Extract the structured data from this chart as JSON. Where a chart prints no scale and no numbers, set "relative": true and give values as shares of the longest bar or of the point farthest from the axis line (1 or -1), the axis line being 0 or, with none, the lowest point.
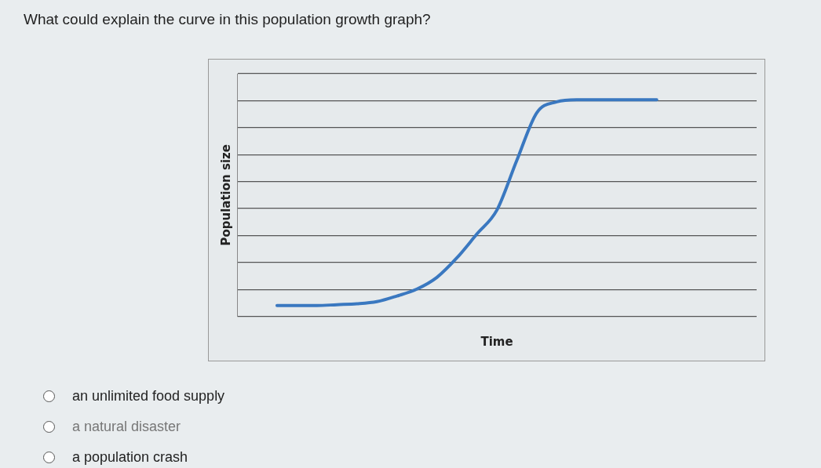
{
  "chart_data": {
    "type": "line",
    "title": "What could explain the curve in this population growth graph?",
    "xlabel": "Time",
    "ylabel": "Population size",
    "relative": true,
    "grid": "y",
    "legend": false,
    "marker": "none",
    "line_style": "solid",
    "categories": [
      null,
      null,
      null,
      null,
      null,
      null,
      null,
      null,
      null,
      null,
      null,
      null,
      null,
      null,
      null,
      null,
      null,
      null,
      null,
      null,
      null,
      null,
      null,
      null,
      null,
      null,
      null
    ],
    "series": [
      {
        "color": "#3a78c0",
        "values": [
          null,
          null,
          0.05,
          0.05,
          0.05,
          0.054,
          0.058,
          0.068,
          0.094,
          0.126,
          0.18,
          0.27,
          0.38,
          0.49,
          0.72,
          0.94,
          0.99,
          1,
          1,
          1,
          1,
          1,
          null,
          null,
          null,
          null,
          null
        ]
      }
    ],
    "annotations": [
      "an unlimited food supply",
      "a natural disaster",
      "a population crash"
    ]
  }
}
